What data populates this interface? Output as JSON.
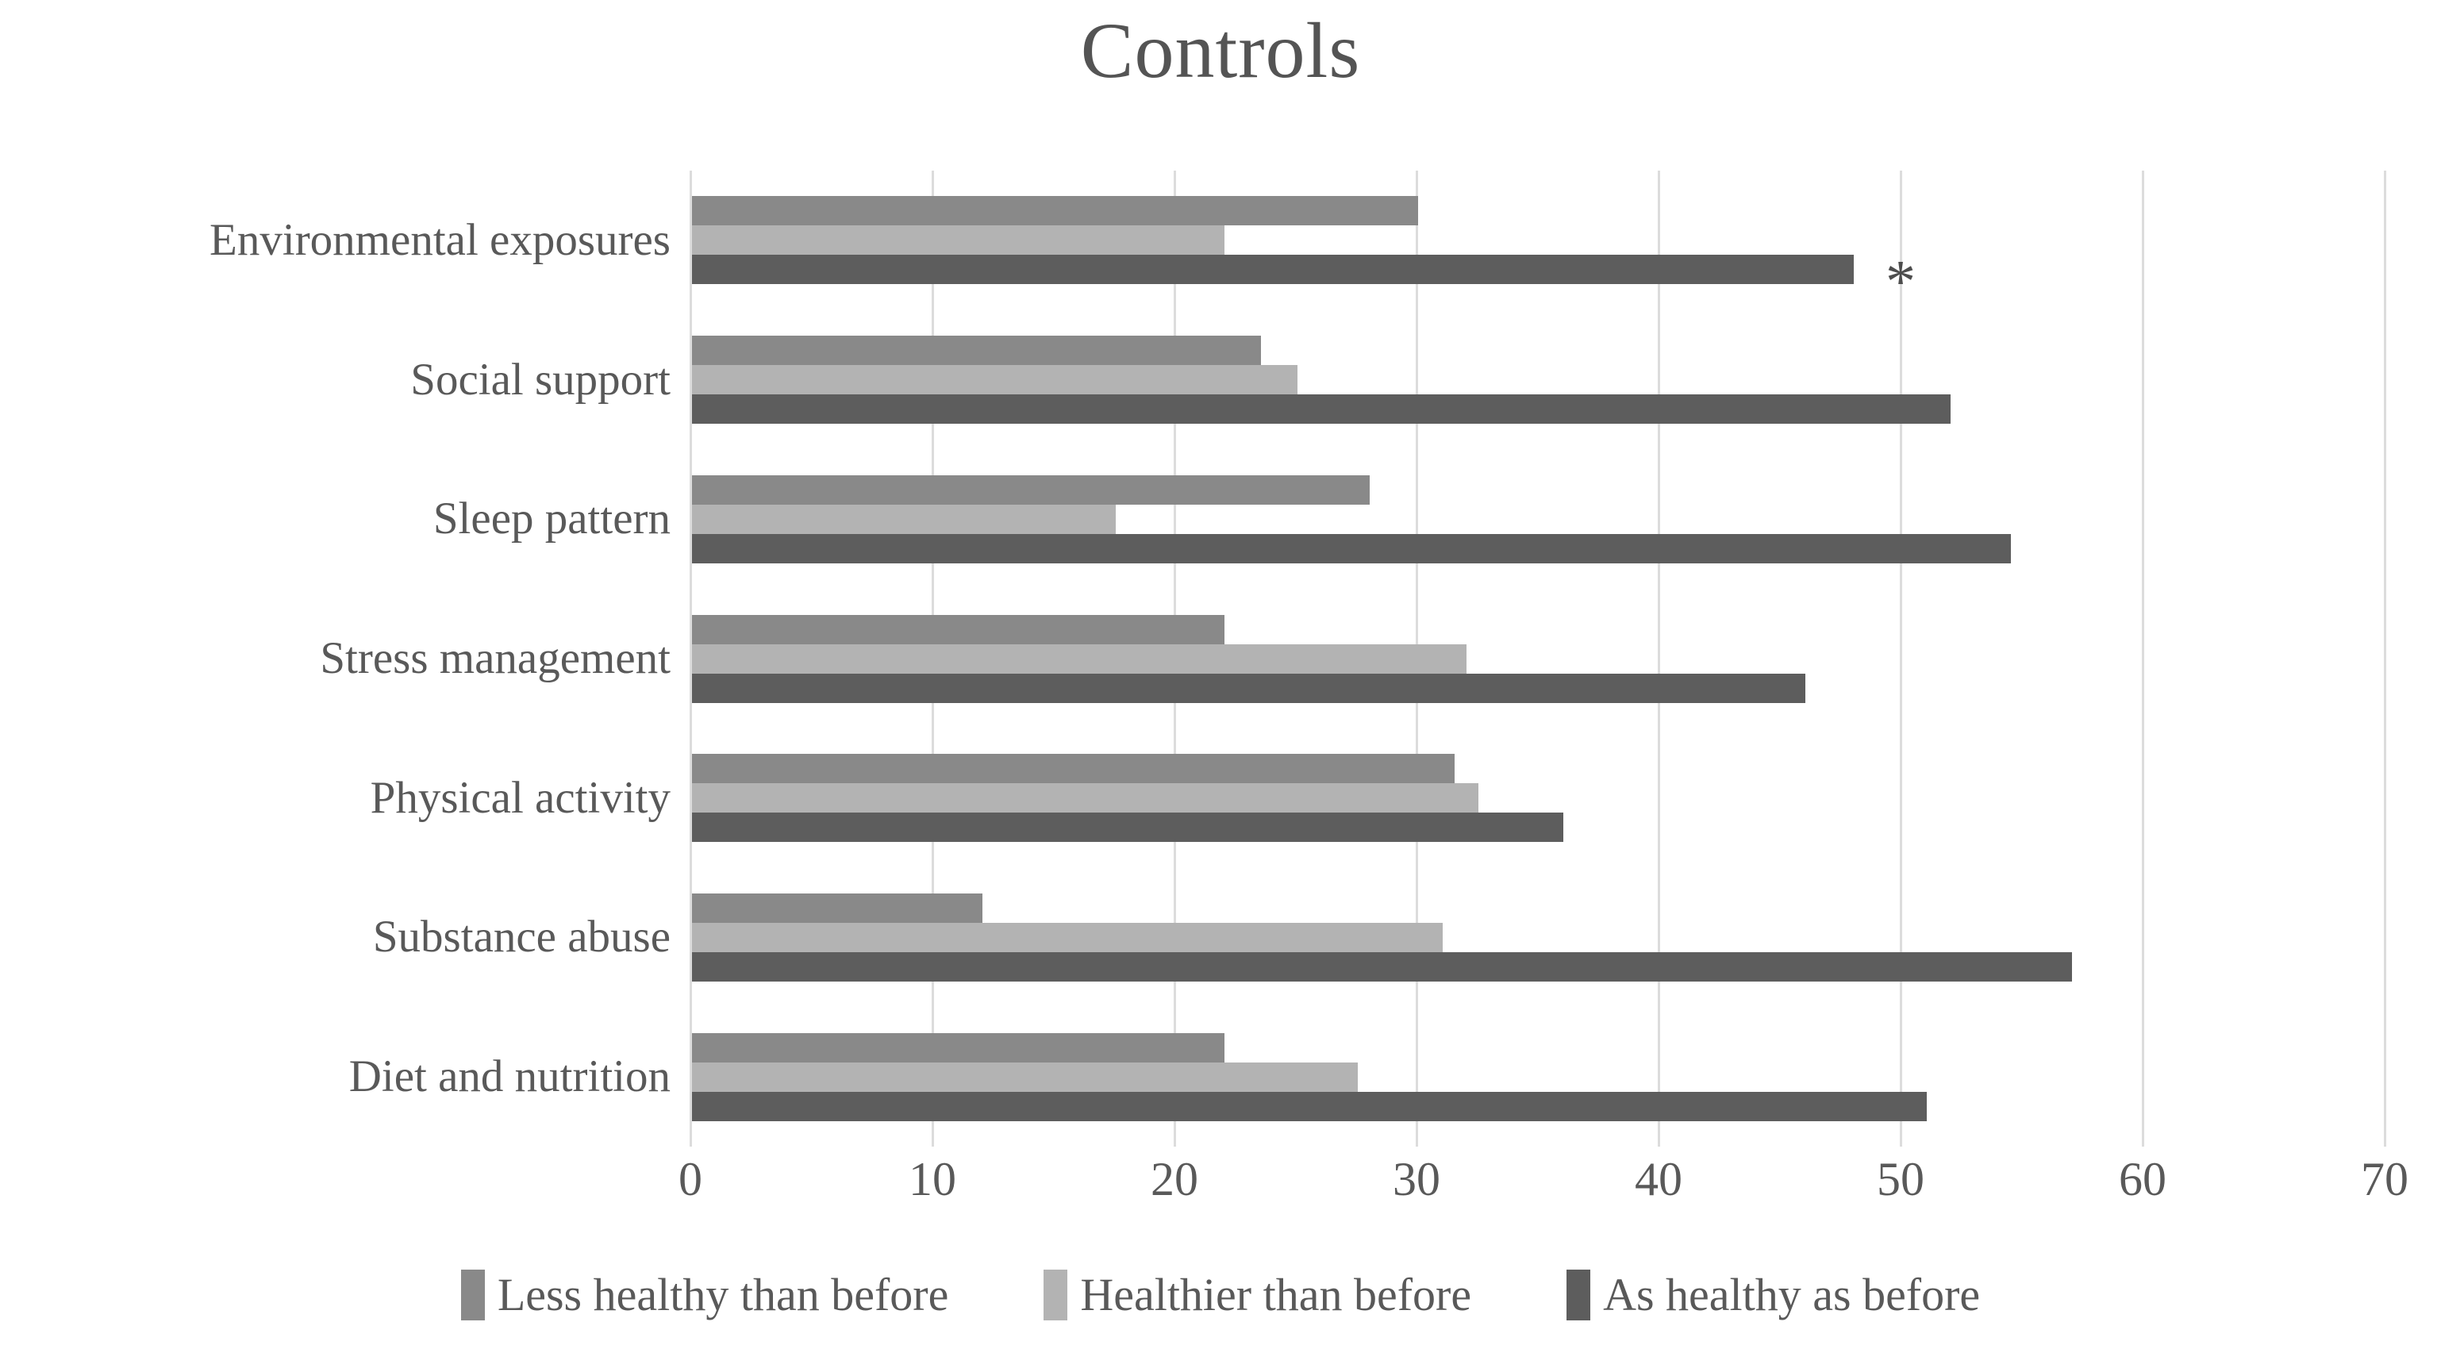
{
  "title": "Controls",
  "colors": {
    "text": "#595959",
    "title": "#545454",
    "gridline": "#dcdcdc",
    "series_less_healthy": "#898989",
    "series_healthier": "#b3b3b3",
    "series_as_healthy": "#5d5d5d",
    "annotation": "#4d4d4d"
  },
  "chart_data": {
    "type": "bar",
    "orientation": "horizontal",
    "title": "Controls",
    "categories": [
      "Environmental exposures",
      "Social support",
      "Sleep pattern",
      "Stress management",
      "Physical activity",
      "Substance abuse",
      "Diet and nutrition"
    ],
    "series": [
      {
        "name": "Less healthy than before",
        "color": "#898989",
        "values": [
          30,
          23.5,
          28,
          22,
          31.5,
          12,
          22
        ]
      },
      {
        "name": "Healthier than before",
        "color": "#b3b3b3",
        "values": [
          22,
          25,
          17.5,
          32,
          32.5,
          31,
          27.5
        ]
      },
      {
        "name": "As healthy as before",
        "color": "#5d5d5d",
        "values": [
          48,
          52,
          54.5,
          46,
          36,
          57,
          51
        ]
      }
    ],
    "xlabel": "",
    "ylabel": "",
    "xlim": [
      0,
      70
    ],
    "x_ticks": [
      0,
      10,
      20,
      30,
      40,
      50,
      60,
      70
    ],
    "grid": "vertical",
    "legend_position": "bottom",
    "annotations": [
      {
        "text": "*",
        "category": "Environmental exposures",
        "series": "As healthy as before",
        "x": 50
      }
    ]
  }
}
